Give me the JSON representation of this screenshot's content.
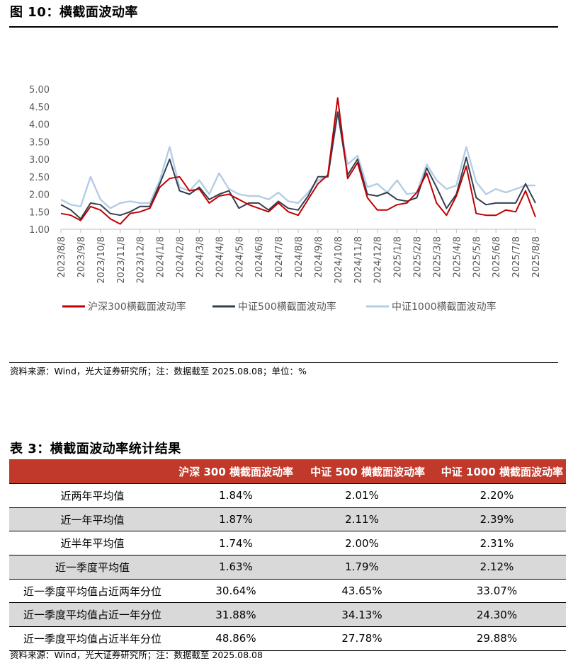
{
  "figure": {
    "title": "图 10：横截面波动率",
    "source": "资料来源：Wind，光大证券研究所；注：数据截至 2025.08.08；单位：%"
  },
  "chart_data": {
    "type": "line",
    "ylim": [
      1.0,
      5.0
    ],
    "yticks": [
      "5.00",
      "4.50",
      "4.00",
      "3.50",
      "3.00",
      "2.50",
      "2.00",
      "1.50",
      "1.00"
    ],
    "xticks": [
      "2023/8/8",
      "2023/9/8",
      "2023/10/8",
      "2023/11/8",
      "2023/12/8",
      "2024/1/8",
      "2024/2/8",
      "2024/3/8",
      "2024/4/8",
      "2024/5/8",
      "2024/6/8",
      "2024/7/8",
      "2024/8/8",
      "2024/9/8",
      "2024/10/8",
      "2024/11/8",
      "2024/12/8",
      "2025/1/8",
      "2025/2/8",
      "2025/3/8",
      "2025/4/8",
      "2025/5/8",
      "2025/6/8",
      "2025/7/8",
      "2025/8/8"
    ],
    "x_index": [
      0,
      0.5,
      1,
      1.5,
      2,
      2.5,
      3,
      3.5,
      4,
      4.5,
      5,
      5.5,
      6,
      6.5,
      7,
      7.5,
      8,
      8.5,
      9,
      9.5,
      10,
      10.5,
      11,
      11.5,
      12,
      12.5,
      13,
      13.5,
      14,
      14.5,
      15,
      15.5,
      16,
      16.5,
      17,
      17.5,
      18,
      18.5,
      19,
      19.5,
      20,
      20.5,
      21,
      21.5,
      22,
      22.5,
      23,
      23.5,
      24
    ],
    "legend_position": "bottom",
    "series": [
      {
        "name": "沪深300横截面波动率",
        "color": "#c00000",
        "values": [
          1.45,
          1.4,
          1.25,
          1.65,
          1.55,
          1.3,
          1.15,
          1.45,
          1.5,
          1.6,
          2.2,
          2.45,
          2.5,
          2.1,
          2.15,
          1.75,
          1.95,
          2.0,
          1.85,
          1.7,
          1.6,
          1.5,
          1.75,
          1.5,
          1.4,
          1.85,
          2.3,
          2.55,
          4.75,
          2.45,
          2.9,
          1.9,
          1.55,
          1.55,
          1.7,
          1.75,
          2.05,
          2.6,
          1.75,
          1.4,
          1.95,
          2.8,
          1.45,
          1.4,
          1.4,
          1.55,
          1.5,
          2.1,
          1.35
        ]
      },
      {
        "name": "中证500横截面波动率",
        "color": "#333f50",
        "values": [
          1.7,
          1.55,
          1.3,
          1.75,
          1.7,
          1.45,
          1.4,
          1.5,
          1.65,
          1.65,
          2.3,
          3.0,
          2.1,
          2.0,
          2.2,
          1.85,
          2.0,
          2.1,
          1.6,
          1.75,
          1.75,
          1.55,
          1.8,
          1.6,
          1.55,
          1.95,
          2.5,
          2.5,
          4.35,
          2.55,
          3.0,
          2.0,
          1.95,
          2.05,
          1.85,
          1.8,
          1.9,
          2.75,
          2.2,
          1.6,
          2.0,
          3.05,
          1.9,
          1.7,
          1.75,
          1.75,
          1.75,
          2.3,
          1.75
        ]
      },
      {
        "name": "中证1000横截面波动率",
        "color": "#b4cde6",
        "values": [
          1.85,
          1.7,
          1.65,
          2.5,
          1.85,
          1.6,
          1.75,
          1.8,
          1.75,
          1.75,
          2.4,
          3.35,
          2.2,
          2.1,
          2.4,
          2.0,
          2.6,
          2.15,
          2.0,
          1.95,
          1.95,
          1.85,
          2.05,
          1.8,
          1.75,
          2.05,
          2.4,
          2.5,
          4.3,
          2.85,
          3.1,
          2.2,
          2.3,
          2.05,
          2.4,
          2.0,
          2.05,
          2.85,
          2.4,
          2.15,
          2.25,
          3.35,
          2.35,
          2.0,
          2.15,
          2.05,
          2.15,
          2.25,
          2.25
        ]
      }
    ]
  },
  "table": {
    "title": "表 3：横截面波动率统计结果",
    "headers": [
      "",
      "沪深 300 横截面波动率",
      "中证 500 横截面波动率",
      "中证 1000 横截面波动率"
    ],
    "rows": [
      {
        "label": "近两年平均值",
        "v1": "1.84%",
        "v2": "2.01%",
        "v3": "2.20%"
      },
      {
        "label": "近一年平均值",
        "v1": "1.87%",
        "v2": "2.11%",
        "v3": "2.39%"
      },
      {
        "label": "近半年平均值",
        "v1": "1.74%",
        "v2": "2.00%",
        "v3": "2.31%"
      },
      {
        "label": "近一季度平均值",
        "v1": "1.63%",
        "v2": "1.79%",
        "v3": "2.12%"
      },
      {
        "label": "近一季度平均值占近两年分位",
        "v1": "30.64%",
        "v2": "43.65%",
        "v3": "33.07%"
      },
      {
        "label": "近一季度平均值占近一年分位",
        "v1": "31.88%",
        "v2": "34.13%",
        "v3": "24.30%"
      },
      {
        "label": "近一季度平均值占近半年分位",
        "v1": "48.86%",
        "v2": "27.78%",
        "v3": "29.88%"
      }
    ],
    "source": "资料来源：Wind，光大证券研究所；注：数据截至 2025.08.08"
  }
}
